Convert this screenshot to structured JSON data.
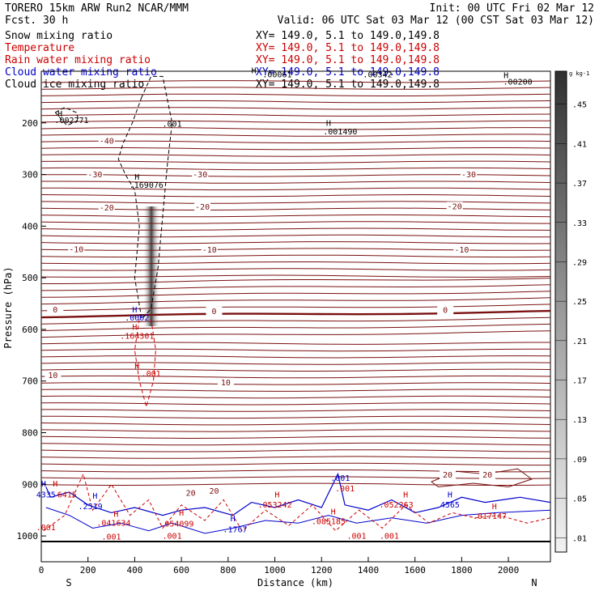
{
  "header": {
    "model": "TORERO  15km ARW   Run2    NCAR/MMM",
    "init": "Init: 00 UTC Fri 02 Mar 12",
    "fcst": "Fcst.   30 h",
    "valid": "Valid: 06 UTC Sat 03 Mar 12 (00 CST Sat 03 Mar 12)"
  },
  "legend": [
    {
      "field": "Snow mixing ratio",
      "xy": "XY= 149.0,  5.1 to 149.0,149.8",
      "color": "#000000"
    },
    {
      "field": "Temperature",
      "xy": "XY= 149.0,  5.1 to 149.0,149.8",
      "color": "#cc0000"
    },
    {
      "field": "Rain water mixing ratio",
      "xy": "XY= 149.0,  5.1 to 149.0,149.8",
      "color": "#cc0000"
    },
    {
      "field": "Cloud water mixing ratio",
      "xy": "XY= 149.0,  5.1 to 149.0,149.8",
      "color": "#0000cc"
    },
    {
      "field": "Cloud ice mixing ratio",
      "xy": "XY= 149.0,  5.1 to 149.0,149.8",
      "color": "#000000"
    }
  ],
  "chart_data": {
    "type": "cross-section contour",
    "xlabel": "Distance (km)",
    "ylabel": "Pressure (hPa)",
    "x_ticks": [
      0,
      200,
      400,
      600,
      800,
      1000,
      1200,
      1400,
      1600,
      1800,
      2000
    ],
    "xlim": [
      0,
      2180
    ],
    "y_ticks": [
      200,
      300,
      400,
      500,
      600,
      700,
      800,
      900,
      1000
    ],
    "ylim_top": 100,
    "ylim_bottom": 1050,
    "endpoints": {
      "left": "S",
      "right": "N"
    },
    "colorbar": {
      "units": "g kg-1",
      "labels": [
        ".45",
        ".41",
        ".37",
        ".33",
        ".29",
        ".25",
        ".21",
        ".17",
        ".13",
        ".09",
        ".05",
        ".01"
      ]
    },
    "temperature_isotherms": [
      {
        "label": "-40",
        "x": 280,
        "p": 240
      },
      {
        "label": "-30",
        "x": 230,
        "p": 305
      },
      {
        "label": "-30",
        "x": 680,
        "p": 305
      },
      {
        "label": "-30",
        "x": 1830,
        "p": 305
      },
      {
        "label": "-20",
        "x": 280,
        "p": 370
      },
      {
        "label": "-20",
        "x": 690,
        "p": 368
      },
      {
        "label": "-20",
        "x": 1770,
        "p": 367
      },
      {
        "label": "-10",
        "x": 150,
        "p": 450
      },
      {
        "label": "-10",
        "x": 720,
        "p": 451
      },
      {
        "label": "-10",
        "x": 1800,
        "p": 451
      },
      {
        "label": "0",
        "x": 60,
        "p": 567
      },
      {
        "label": "0",
        "x": 740,
        "p": 570
      },
      {
        "label": "0",
        "x": 1730,
        "p": 568
      },
      {
        "label": "10",
        "x": 50,
        "p": 694
      },
      {
        "label": "10",
        "x": 790,
        "p": 708
      },
      {
        "label": "20",
        "x": 640,
        "p": 922
      },
      {
        "label": "20",
        "x": 740,
        "p": 918
      },
      {
        "label": "20",
        "x": 1740,
        "p": 887
      },
      {
        "label": "20",
        "x": 1910,
        "p": 887
      }
    ],
    "maxima_annotations": [
      {
        "label": ".002771",
        "color": "#000000",
        "x": 130,
        "p": 200
      },
      {
        "label": ".001",
        "color": "#000000",
        "x": 560,
        "p": 207
      },
      {
        "label": ".001490",
        "color": "#000000",
        "x": 1280,
        "p": 222
      },
      {
        "label": ".00200",
        "color": "#000000",
        "x": 2040,
        "p": 126
      },
      {
        "label": ".00061",
        "color": "#000000",
        "x": 1010,
        "p": 112
      },
      {
        "label": ".00342",
        "color": "#000000",
        "x": 1440,
        "p": 112
      },
      {
        "label": ".169076",
        "color": "#000000",
        "x": 450,
        "p": 326
      },
      {
        "label": ".0002",
        "color": "#0000cc",
        "x": 410,
        "p": 583
      },
      {
        "label": ".164301",
        "color": "#cc0000",
        "x": 410,
        "p": 618
      },
      {
        "label": ".001",
        "color": "#cc0000",
        "x": 470,
        "p": 691
      },
      {
        "label": ".001",
        "color": "#0000cc",
        "x": 1280,
        "p": 893
      },
      {
        "label": ".001",
        "color": "#cc0000",
        "x": 1300,
        "p": 914
      },
      {
        "label": "4335",
        "color": "#0000cc",
        "x": 20,
        "p": 925
      },
      {
        "label": "6415",
        "color": "#cc0000",
        "x": 110,
        "p": 925
      },
      {
        "label": ".2519",
        "color": "#0000cc",
        "x": 210,
        "p": 948
      },
      {
        "label": ".041634",
        "color": "#cc0000",
        "x": 310,
        "p": 980
      },
      {
        "label": ".054099",
        "color": "#cc0000",
        "x": 580,
        "p": 982
      },
      {
        "label": ".1767",
        "color": "#0000cc",
        "x": 830,
        "p": 993
      },
      {
        "label": ".053242",
        "color": "#cc0000",
        "x": 1000,
        "p": 945
      },
      {
        "label": ".085185",
        "color": "#cc0000",
        "x": 1230,
        "p": 977
      },
      {
        "label": ".052263",
        "color": "#cc0000",
        "x": 1520,
        "p": 945
      },
      {
        "label": "4565",
        "color": "#0000cc",
        "x": 1750,
        "p": 945
      },
      {
        "label": ".017147",
        "color": "#cc0000",
        "x": 1920,
        "p": 967
      },
      {
        "label": ".001",
        "color": "#cc0000",
        "x": 20,
        "p": 989
      },
      {
        "label": ".001",
        "color": "#cc0000",
        "x": 300,
        "p": 1007
      },
      {
        "label": ".001",
        "color": "#cc0000",
        "x": 560,
        "p": 1005
      },
      {
        "label": ".001",
        "color": "#cc0000",
        "x": 1350,
        "p": 1005
      },
      {
        "label": ".001",
        "color": "#cc0000",
        "x": 1490,
        "p": 1005
      }
    ],
    "H_markers": [
      {
        "x": 80,
        "p": 188,
        "color": "#000000"
      },
      {
        "x": 1230,
        "p": 206,
        "color": "#000000"
      },
      {
        "x": 1990,
        "p": 113,
        "color": "#000000"
      },
      {
        "x": 910,
        "p": 104,
        "color": "#000000"
      },
      {
        "x": 410,
        "p": 310,
        "color": "#000000"
      },
      {
        "x": 400,
        "p": 567,
        "color": "#0000cc"
      },
      {
        "x": 400,
        "p": 601,
        "color": "#cc0000"
      },
      {
        "x": 410,
        "p": 676,
        "color": "#cc0000"
      },
      {
        "x": 10,
        "p": 904,
        "color": "#0000cc"
      },
      {
        "x": 60,
        "p": 904,
        "color": "#cc0000"
      },
      {
        "x": 230,
        "p": 928,
        "color": "#0000cc"
      },
      {
        "x": 320,
        "p": 963,
        "color": "#cc0000"
      },
      {
        "x": 600,
        "p": 961,
        "color": "#cc0000"
      },
      {
        "x": 820,
        "p": 972,
        "color": "#0000cc"
      },
      {
        "x": 1010,
        "p": 925,
        "color": "#cc0000"
      },
      {
        "x": 1250,
        "p": 958,
        "color": "#cc0000"
      },
      {
        "x": 1560,
        "p": 925,
        "color": "#cc0000"
      },
      {
        "x": 1750,
        "p": 925,
        "color": "#0000cc"
      },
      {
        "x": 1940,
        "p": 948,
        "color": "#cc0000"
      }
    ]
  }
}
